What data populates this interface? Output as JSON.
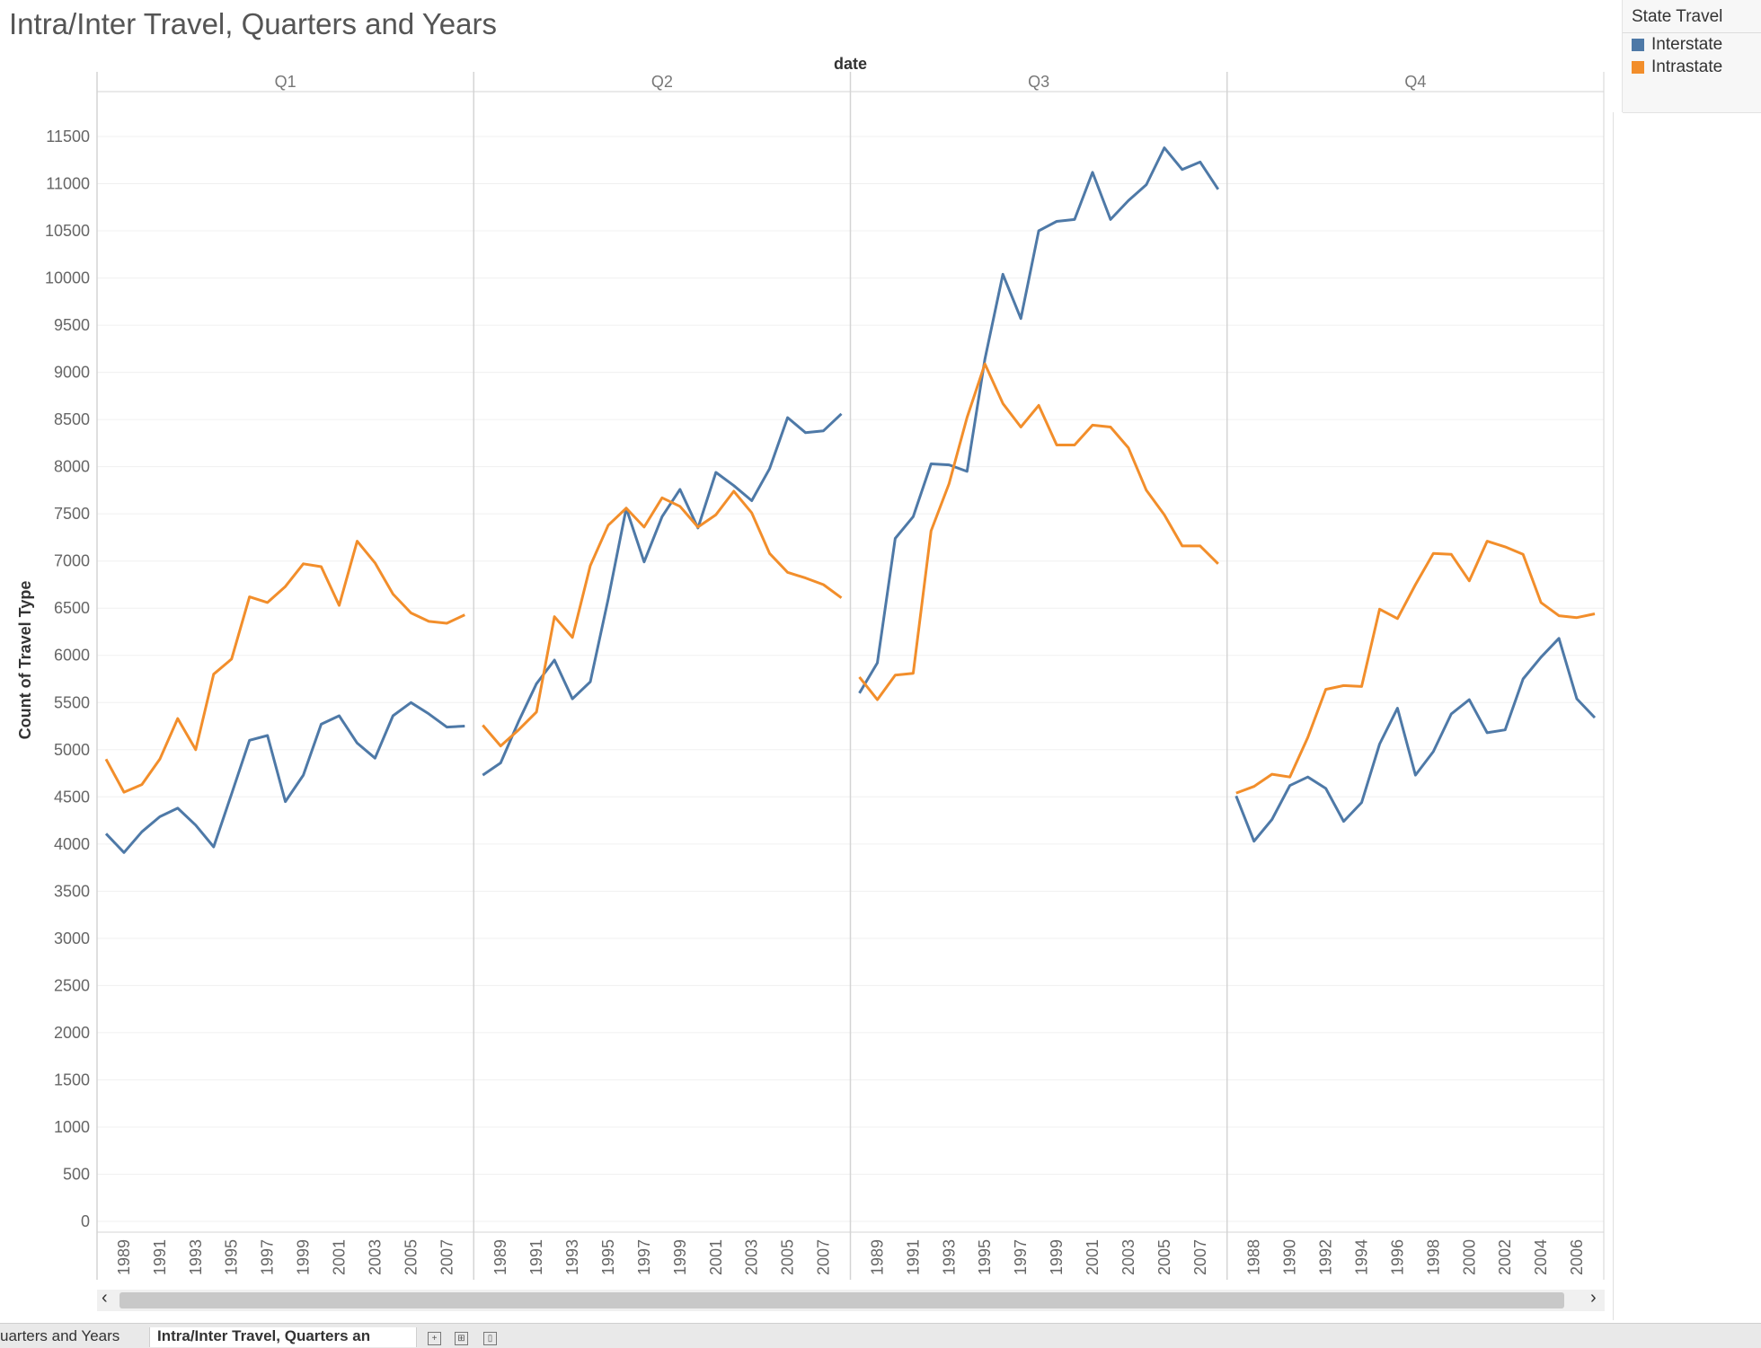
{
  "title": "Intra/Inter Travel, Quarters and Years",
  "legend": {
    "title": "State Travel",
    "items": [
      {
        "label": "Interstate",
        "color": "#4e79a7"
      },
      {
        "label": "Intrastate",
        "color": "#f28e2b"
      }
    ]
  },
  "tabs": [
    {
      "label": "uarters and Years"
    },
    {
      "label": "Intra/Inter Travel, Quarters an"
    }
  ],
  "chart_data": {
    "type": "line",
    "xlabel": "date",
    "ylabel": "Count of Travel Type",
    "ylim": [
      0,
      11900
    ],
    "yticks": [
      0,
      500,
      1000,
      1500,
      2000,
      2500,
      3000,
      3500,
      4000,
      4500,
      5000,
      5500,
      6000,
      6500,
      7000,
      7500,
      8000,
      8500,
      9000,
      9500,
      10000,
      10500,
      11000,
      11500
    ],
    "grid": true,
    "legend_position": "top-right",
    "panels": [
      {
        "label": "Q1",
        "x": [
          1988,
          1989,
          1990,
          1991,
          1992,
          1993,
          1994,
          1995,
          1996,
          1997,
          1998,
          1999,
          2000,
          2001,
          2002,
          2003,
          2004,
          2005,
          2006,
          2007,
          2008
        ],
        "xticks": [
          1989,
          1991,
          1993,
          1995,
          1997,
          1999,
          2001,
          2003,
          2005,
          2007
        ],
        "series": [
          {
            "name": "Interstate",
            "values": [
              4110,
              3910,
              4130,
              4290,
              4380,
              4200,
              3970,
              4530,
              5100,
              5150,
              4450,
              4730,
              5270,
              5360,
              5070,
              4910,
              5360,
              5500,
              5380,
              5240,
              5250
            ]
          },
          {
            "name": "Intrastate",
            "values": [
              4900,
              4550,
              4630,
              4900,
              5330,
              5000,
              5800,
              5960,
              6620,
              6560,
              6730,
              6970,
              6940,
              6530,
              7210,
              6980,
              6650,
              6450,
              6360,
              6340,
              6430
            ]
          }
        ]
      },
      {
        "label": "Q2",
        "x": [
          1988,
          1989,
          1990,
          1991,
          1992,
          1993,
          1994,
          1995,
          1996,
          1997,
          1998,
          1999,
          2000,
          2001,
          2002,
          2003,
          2004,
          2005,
          2006,
          2007,
          2008
        ],
        "xticks": [
          1989,
          1991,
          1993,
          1995,
          1997,
          1999,
          2001,
          2003,
          2005,
          2007
        ],
        "series": [
          {
            "name": "Interstate",
            "values": [
              4730,
              4860,
              5300,
              5700,
              5950,
              5540,
              5720,
              6600,
              7560,
              6990,
              7470,
              7760,
              7350,
              7940,
              7800,
              7640,
              7980,
              8520,
              8360,
              8380,
              8560
            ]
          },
          {
            "name": "Intrastate",
            "values": [
              5260,
              5040,
              5210,
              5400,
              6410,
              6190,
              6950,
              7380,
              7560,
              7360,
              7670,
              7580,
              7360,
              7490,
              7740,
              7510,
              7080,
              6880,
              6820,
              6750,
              6610
            ]
          }
        ]
      },
      {
        "label": "Q3",
        "x": [
          1988,
          1989,
          1990,
          1991,
          1992,
          1993,
          1994,
          1995,
          1996,
          1997,
          1998,
          1999,
          2000,
          2001,
          2002,
          2003,
          2004,
          2005,
          2006,
          2007,
          2008
        ],
        "xticks": [
          1989,
          1991,
          1993,
          1995,
          1997,
          1999,
          2001,
          2003,
          2005,
          2007
        ],
        "series": [
          {
            "name": "Interstate",
            "values": [
              5600,
              5920,
              7240,
              7470,
              8030,
              8020,
              7950,
              9140,
              10040,
              9570,
              10500,
              10600,
              10620,
              11120,
              10620,
              10820,
              10990,
              11380,
              11150,
              11230,
              10940
            ]
          },
          {
            "name": "Intrastate",
            "values": [
              5770,
              5530,
              5790,
              5810,
              7320,
              7820,
              8520,
              9090,
              8670,
              8420,
              8650,
              8230,
              8230,
              8440,
              8420,
              8200,
              7750,
              7490,
              7160,
              7160,
              6970
            ]
          }
        ]
      },
      {
        "label": "Q4",
        "x": [
          1987,
          1988,
          1989,
          1990,
          1991,
          1992,
          1993,
          1994,
          1995,
          1996,
          1997,
          1998,
          1999,
          2000,
          2001,
          2002,
          2003,
          2004,
          2005,
          2006,
          2007
        ],
        "xticks": [
          1988,
          1990,
          1992,
          1994,
          1996,
          1998,
          2000,
          2002,
          2004,
          2006
        ],
        "series": [
          {
            "name": "Interstate",
            "values": [
              4510,
              4030,
              4260,
              4620,
              4710,
              4590,
              4240,
              4440,
              5060,
              5440,
              4730,
              4980,
              5380,
              5530,
              5180,
              5210,
              5750,
              5980,
              6180,
              5540,
              5340
            ]
          },
          {
            "name": "Intrastate",
            "values": [
              4540,
              4610,
              4740,
              4710,
              5130,
              5640,
              5680,
              5670,
              6490,
              6390,
              6750,
              7080,
              7070,
              6790,
              7210,
              7150,
              7070,
              6560,
              6420,
              6400,
              6440
            ]
          }
        ]
      }
    ]
  }
}
